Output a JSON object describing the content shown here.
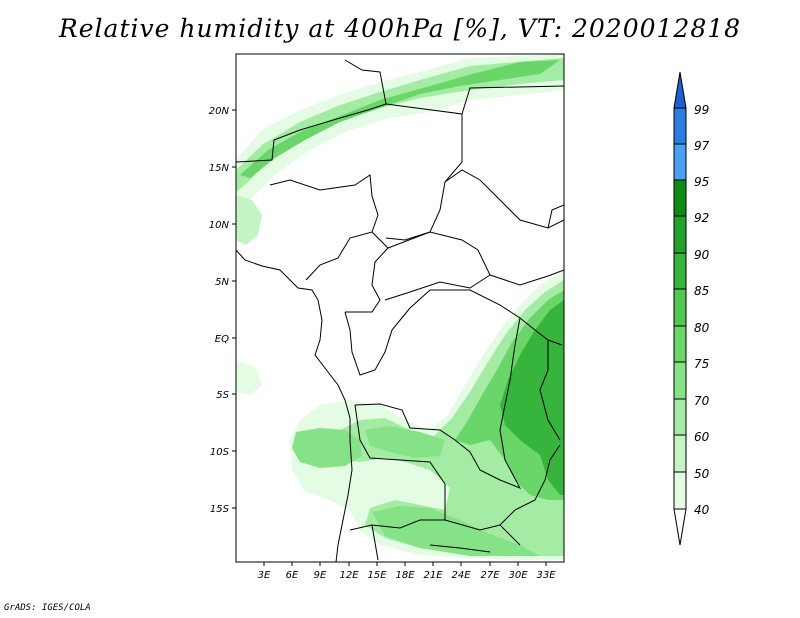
{
  "title": "Relative humidity at 400hPa [%], VT: 2020012818",
  "credit": "GrADS: IGES/COLA",
  "variable": "Relative humidity at 400hPa",
  "units": "%",
  "valid_time": "2020012818",
  "axes": {
    "lat_labels": [
      "20N",
      "15N",
      "10N",
      "5N",
      "EQ",
      "5S",
      "10S",
      "15S"
    ],
    "lat_values": [
      20,
      15,
      10,
      5,
      0,
      -5,
      -10,
      -15
    ],
    "lon_labels": [
      "3E",
      "6E",
      "9E",
      "12E",
      "15E",
      "18E",
      "21E",
      "24E",
      "27E",
      "30E",
      "33E"
    ],
    "lon_values": [
      3,
      6,
      9,
      12,
      15,
      18,
      21,
      24,
      27,
      30,
      33
    ],
    "lat_range": [
      -19.8,
      24.8
    ],
    "lon_range": [
      0.2,
      35.2
    ]
  },
  "colorbar": {
    "levels": [
      "99",
      "97",
      "95",
      "92",
      "90",
      "85",
      "80",
      "75",
      "70",
      "60",
      "50",
      "40"
    ],
    "colors": [
      "#1e5fd2",
      "#2c7fe0",
      "#4aa0f0",
      "#0e8c12",
      "#22a22c",
      "#36b43c",
      "#50c850",
      "#6ad66a",
      "#86e286",
      "#a4eca4",
      "#c4f4c4",
      "#e4fbe4"
    ]
  },
  "legend_names": [
    "colorbar-arrow-top",
    "colorbar-arrow-bottom"
  ]
}
